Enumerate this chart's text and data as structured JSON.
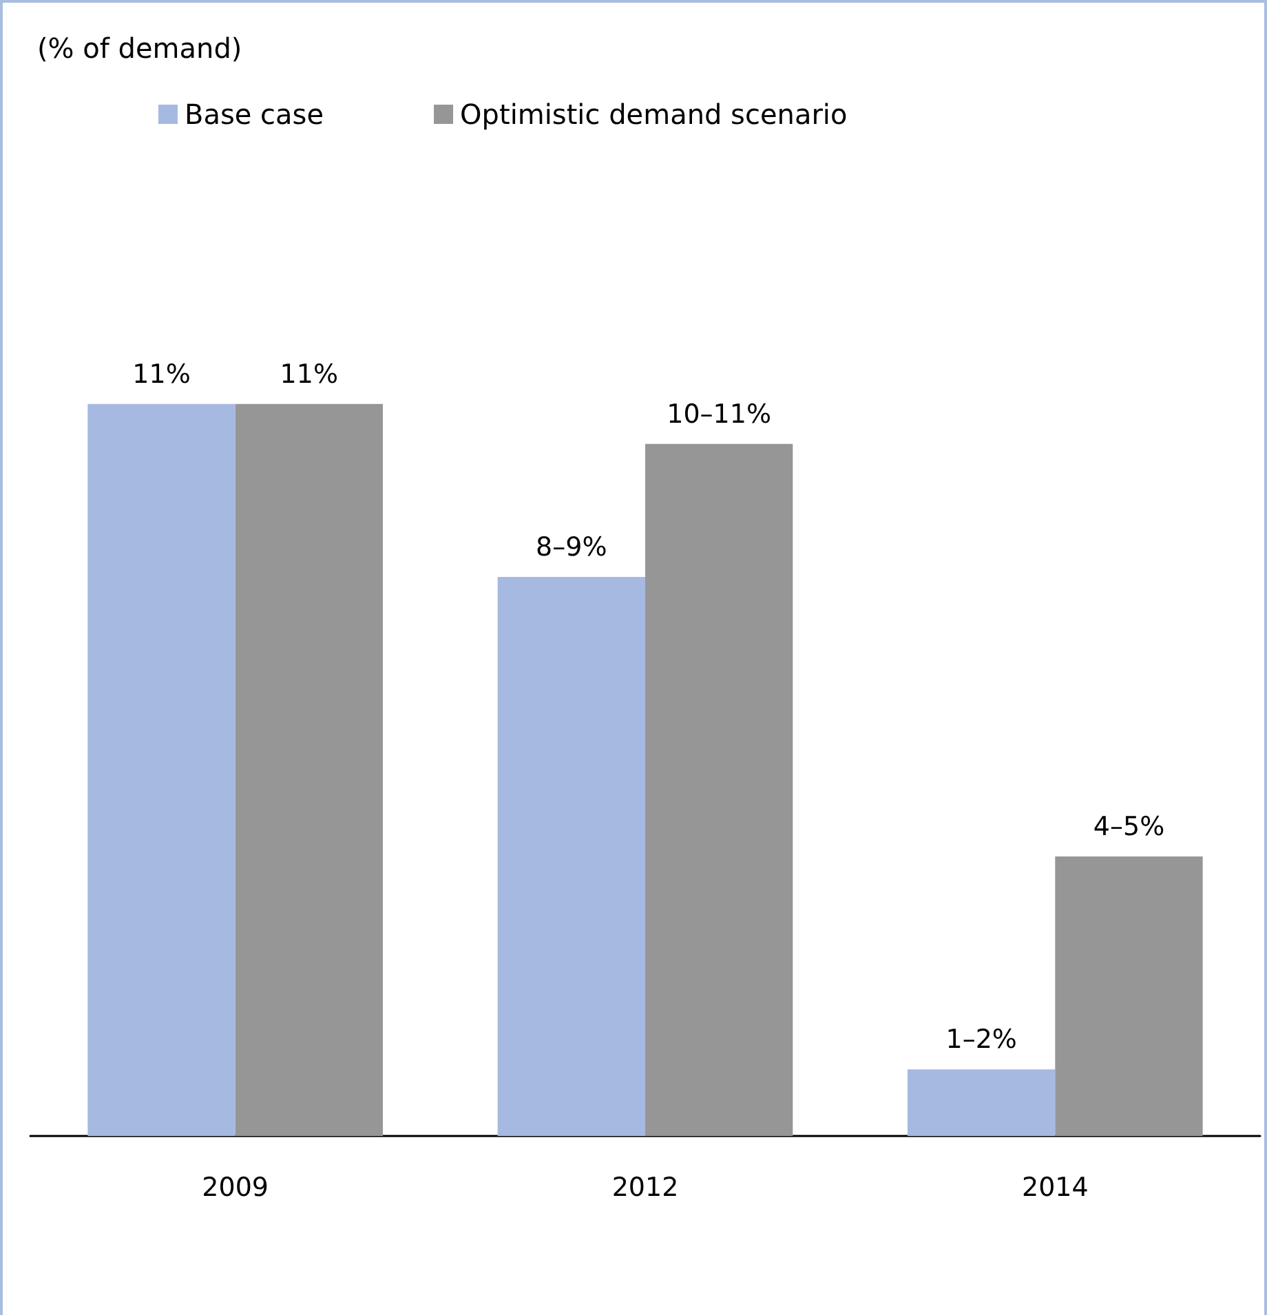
{
  "chart_data": {
    "type": "bar",
    "title": "(% of demand)",
    "categories": [
      "2009",
      "2012",
      "2014"
    ],
    "series": [
      {
        "name": "Base case",
        "color": "#a6b9e0",
        "values": [
          11,
          8.4,
          1.0
        ],
        "value_labels": [
          "11%",
          "8–9%",
          "1–2%"
        ]
      },
      {
        "name": "Optimistic demand scenario",
        "color": "#969696",
        "values": [
          11,
          10.4,
          4.2
        ],
        "value_labels": [
          "11%",
          "10–11%",
          "4–5%"
        ]
      }
    ],
    "legend": "top"
  }
}
